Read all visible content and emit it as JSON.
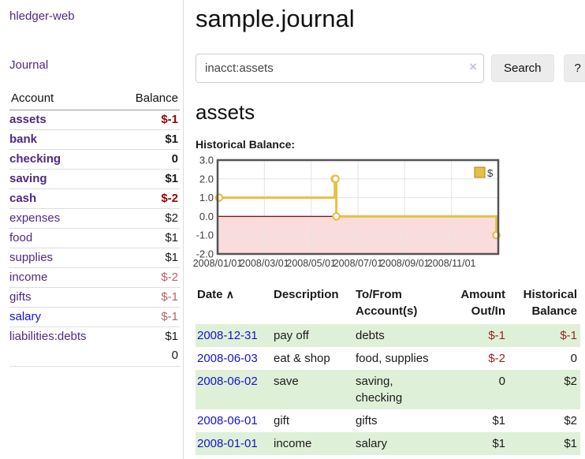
{
  "colors": {
    "link_purple": "#4e2a85",
    "link_blue": "#1414cc",
    "negative_strong": "#990000",
    "negative_soft": "#b26565",
    "negative_table": "#992222",
    "row_green": "#dff0d8",
    "chart_gold": "#e8bf45",
    "chart_negative_fill": "#fbdcdc",
    "chart_zero_line": "#a80000"
  },
  "sidebar": {
    "brand": "hledger-web",
    "nav_journal": "Journal",
    "accounts_table": {
      "headers": {
        "account": "Account",
        "balance": "Balance"
      },
      "rows": [
        {
          "account": "assets",
          "balance": "$-1",
          "depth": 1,
          "bold": true,
          "negative": "strong"
        },
        {
          "account": "bank",
          "balance": "$1",
          "depth": 2,
          "bold": true
        },
        {
          "account": "checking",
          "balance": "0",
          "depth": 3,
          "bold": true
        },
        {
          "account": "saving",
          "balance": "$1",
          "depth": 3,
          "bold": true
        },
        {
          "account": "cash",
          "balance": "$-2",
          "depth": 2,
          "bold": true,
          "negative": "strong"
        },
        {
          "account": "expenses",
          "balance": "$2",
          "depth": 1
        },
        {
          "account": "food",
          "balance": "$1",
          "depth": 2
        },
        {
          "account": "supplies",
          "balance": "$1",
          "depth": 2
        },
        {
          "account": "income",
          "balance": "$-2",
          "depth": 1,
          "negative": "soft"
        },
        {
          "account": "gifts",
          "balance": "$-1",
          "depth": 2,
          "negative": "soft"
        },
        {
          "account": "salary",
          "balance": "$-1",
          "depth": 2,
          "negative": "soft",
          "link_style": "unvisited"
        },
        {
          "account": "liabilities:debts",
          "balance": "$1",
          "depth": 1
        }
      ],
      "total": "0"
    }
  },
  "main": {
    "title": "sample.journal",
    "search": {
      "value": "inacct:assets",
      "clear_icon": "×",
      "button_label": "Search",
      "help_label": "?"
    },
    "account_heading": "assets",
    "chart_label": "Historical Balance:"
  },
  "chart_data": {
    "type": "line",
    "title": "Historical Balance",
    "step": true,
    "series": [
      {
        "name": "$",
        "points": [
          [
            "2008-01-01",
            1
          ],
          [
            "2008-06-01",
            2
          ],
          [
            "2008-06-02",
            2
          ],
          [
            "2008-06-03",
            0
          ],
          [
            "2008-12-31",
            -1
          ]
        ]
      }
    ],
    "x_ticks": [
      "2008/01/01",
      "2008/03/01",
      "2008/05/01",
      "2008/07/01",
      "2008/09/01",
      "2008/11/01"
    ],
    "y_ticks": [
      "3.0",
      "2.0",
      "1.0",
      "0.0",
      "-1.0",
      "-2.0"
    ],
    "ylim": [
      -2,
      3
    ],
    "x_range_months": 12,
    "grid": true,
    "legend": {
      "label": "$",
      "position": "top-right"
    }
  },
  "transactions_table": {
    "sort_icon": "∧",
    "headers": {
      "date": "Date",
      "description": "Description",
      "accounts": "To/From Account(s)",
      "amount": "Amount Out/In",
      "balance": "Historical Balance"
    },
    "rows": [
      {
        "date": "2008-12-31",
        "description": "pay off",
        "accounts": "debts",
        "amount": "$-1",
        "balance": "$-1",
        "amount_neg": true,
        "balance_neg": true,
        "shaded": true
      },
      {
        "date": "2008-06-03",
        "description": "eat & shop",
        "accounts": "food, supplies",
        "amount": "$-2",
        "balance": "0",
        "amount_neg": true,
        "balance_neg": false,
        "shaded": false
      },
      {
        "date": "2008-06-02",
        "description": "save",
        "accounts": "saving, checking",
        "amount": "0",
        "balance": "$2",
        "amount_neg": false,
        "balance_neg": false,
        "shaded": true
      },
      {
        "date": "2008-06-01",
        "description": "gift",
        "accounts": "gifts",
        "amount": "$1",
        "balance": "$2",
        "amount_neg": false,
        "balance_neg": false,
        "shaded": false
      },
      {
        "date": "2008-01-01",
        "description": "income",
        "accounts": "salary",
        "amount": "$1",
        "balance": "$1",
        "amount_neg": false,
        "balance_neg": false,
        "shaded": true
      }
    ]
  }
}
